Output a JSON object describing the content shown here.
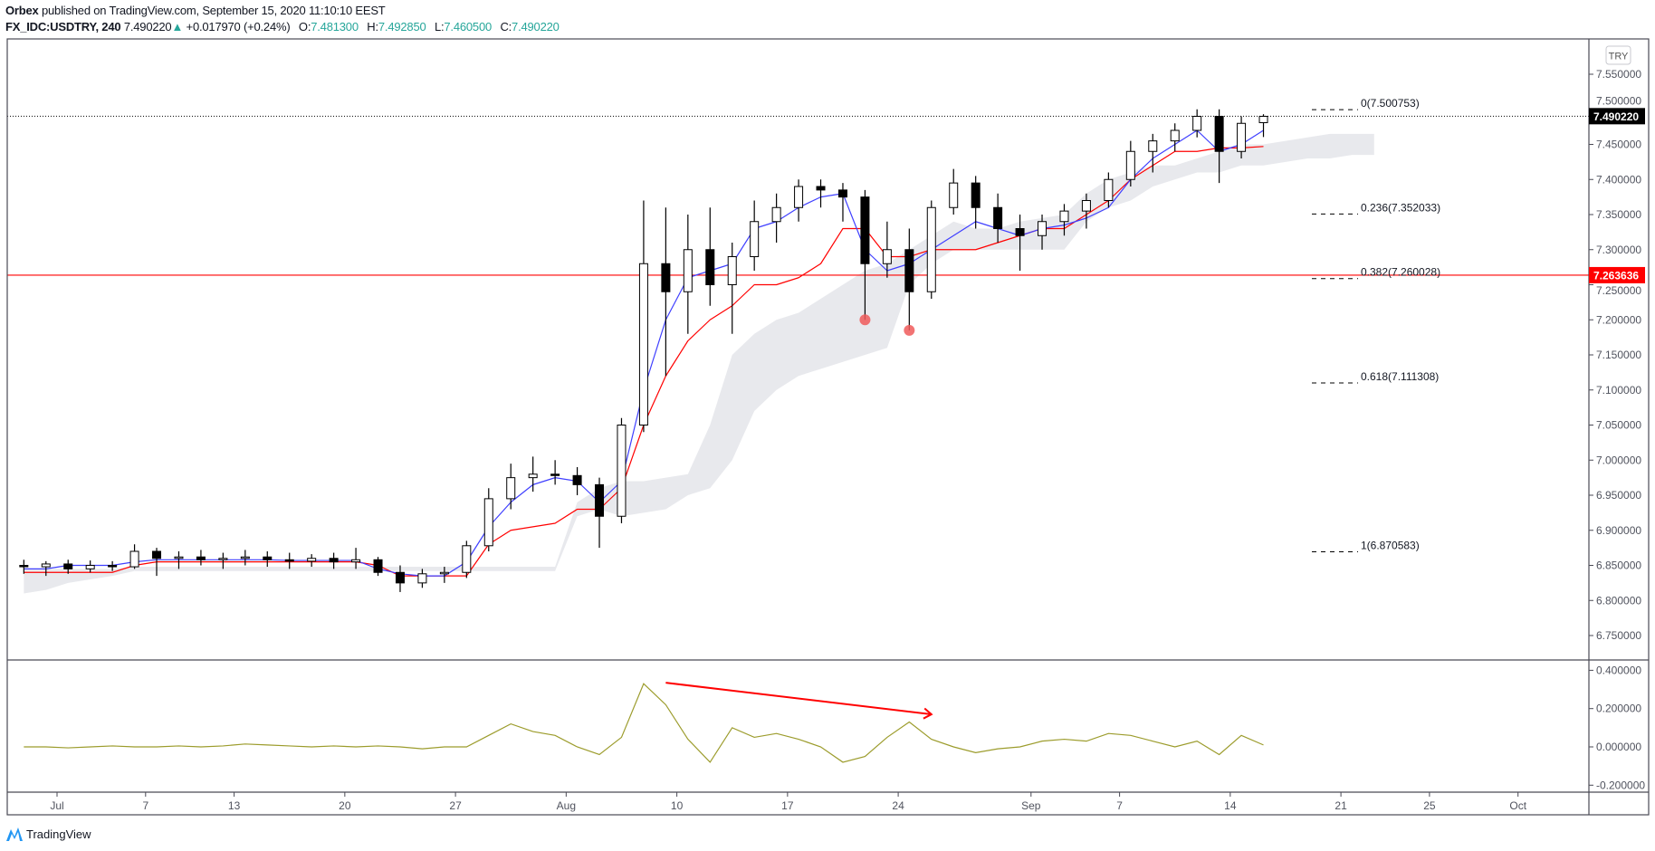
{
  "header": {
    "publisher": "Orbex",
    "published_text": "published on TradingView.com, September 15, 2020 11:10:10 EEST",
    "symbol": "FX_IDC:USDTRY, 240",
    "last": "7.490220",
    "change": "+0.017970 (+0.24%)",
    "o_label": "O:",
    "o": "7.481300",
    "h_label": "H:",
    "h": "7.492850",
    "l_label": "L:",
    "l": "7.460500",
    "c_label": "C:",
    "c": "7.490220"
  },
  "footer": {
    "logo_text": "TradingView"
  },
  "colors": {
    "up_text": "#26a69a",
    "tenkan": "#3f3fff",
    "kijun": "#ff0000",
    "cloud": "#e8e9ed",
    "oscillator": "#9c9c2c",
    "hline": "#ff0000",
    "arrow": "#ff0000",
    "marker": "#f05a5a",
    "last_price_bg": "#000000"
  },
  "chart_data": [
    {
      "type": "candlestick",
      "title": "",
      "currency_button": "TRY",
      "ylim": [
        6.72,
        7.585
      ],
      "y_ticks": [
        "7.550000",
        "7.500000",
        "7.450000",
        "7.400000",
        "7.350000",
        "7.300000",
        "7.250000",
        "7.200000",
        "7.150000",
        "7.100000",
        "7.050000",
        "7.000000",
        "6.950000",
        "6.900000",
        "6.850000",
        "6.800000",
        "6.750000"
      ],
      "x_ticks": [
        {
          "label": "Jul",
          "date": "07-01"
        },
        {
          "label": "7",
          "date": "07-07"
        },
        {
          "label": "13",
          "date": "07-13"
        },
        {
          "label": "20",
          "date": "07-20"
        },
        {
          "label": "27",
          "date": "07-27"
        },
        {
          "label": "Aug",
          "date": "08-03"
        },
        {
          "label": "10",
          "date": "08-10"
        },
        {
          "label": "17",
          "date": "08-17"
        },
        {
          "label": "24",
          "date": "08-24"
        },
        {
          "label": "Sep",
          "date": "09-01"
        },
        {
          "label": "7",
          "date": "09-07"
        },
        {
          "label": "14",
          "date": "09-14"
        },
        {
          "label": "21",
          "date": "09-21"
        },
        {
          "label": "25",
          "date": "09-25"
        },
        {
          "label": "Oct",
          "date": "10-01"
        }
      ],
      "bars_ohlc": [
        [
          "06-29",
          6.85,
          6.858,
          6.838,
          6.848
        ],
        [
          "06-30",
          6.848,
          6.856,
          6.835,
          6.852
        ],
        [
          "07-01",
          6.852,
          6.858,
          6.838,
          6.845
        ],
        [
          "07-02",
          6.845,
          6.857,
          6.84,
          6.85
        ],
        [
          "07-03",
          6.85,
          6.856,
          6.842,
          6.848
        ],
        [
          "07-06",
          6.848,
          6.88,
          6.845,
          6.87
        ],
        [
          "07-07",
          6.87,
          6.875,
          6.835,
          6.86
        ],
        [
          "07-08",
          6.86,
          6.87,
          6.845,
          6.862
        ],
        [
          "07-09",
          6.862,
          6.872,
          6.85,
          6.858
        ],
        [
          "07-10",
          6.858,
          6.868,
          6.845,
          6.86
        ],
        [
          "07-13",
          6.86,
          6.872,
          6.85,
          6.862
        ],
        [
          "07-14",
          6.862,
          6.87,
          6.848,
          6.858
        ],
        [
          "07-15",
          6.858,
          6.868,
          6.845,
          6.856
        ],
        [
          "07-16",
          6.856,
          6.866,
          6.848,
          6.86
        ],
        [
          "07-17",
          6.86,
          6.868,
          6.845,
          6.855
        ],
        [
          "07-20",
          6.855,
          6.875,
          6.845,
          6.858
        ],
        [
          "07-21",
          6.858,
          6.862,
          6.835,
          6.84
        ],
        [
          "07-22",
          6.84,
          6.85,
          6.812,
          6.825
        ],
        [
          "07-23",
          6.825,
          6.845,
          6.818,
          6.838
        ],
        [
          "07-24",
          6.838,
          6.848,
          6.825,
          6.84
        ],
        [
          "07-27",
          6.84,
          6.885,
          6.832,
          6.878
        ],
        [
          "07-28",
          6.878,
          6.96,
          6.87,
          6.945
        ],
        [
          "07-29",
          6.945,
          6.995,
          6.93,
          6.975
        ],
        [
          "07-30",
          6.975,
          7.005,
          6.955,
          6.98
        ],
        [
          "07-31",
          6.98,
          7.0,
          6.965,
          6.978
        ],
        [
          "08-03",
          6.978,
          6.99,
          6.95,
          6.965
        ],
        [
          "08-04",
          6.965,
          6.975,
          6.875,
          6.92
        ],
        [
          "08-05",
          6.92,
          7.06,
          6.91,
          7.05
        ],
        [
          "08-06",
          7.05,
          7.37,
          7.04,
          7.28
        ],
        [
          "08-07",
          7.28,
          7.36,
          7.12,
          7.24
        ],
        [
          "08-10",
          7.24,
          7.35,
          7.18,
          7.3
        ],
        [
          "08-11",
          7.3,
          7.36,
          7.22,
          7.25
        ],
        [
          "08-12",
          7.25,
          7.31,
          7.18,
          7.29
        ],
        [
          "08-13",
          7.29,
          7.37,
          7.27,
          7.34
        ],
        [
          "08-14",
          7.34,
          7.38,
          7.31,
          7.36
        ],
        [
          "08-17",
          7.36,
          7.4,
          7.34,
          7.39
        ],
        [
          "08-18",
          7.39,
          7.4,
          7.36,
          7.385
        ],
        [
          "08-19",
          7.385,
          7.395,
          7.34,
          7.375
        ],
        [
          "08-20",
          7.375,
          7.385,
          7.2,
          7.28
        ],
        [
          "08-21",
          7.28,
          7.34,
          7.26,
          7.3
        ],
        [
          "08-24",
          7.3,
          7.33,
          7.185,
          7.24
        ],
        [
          "08-25",
          7.24,
          7.37,
          7.23,
          7.36
        ],
        [
          "08-26",
          7.36,
          7.415,
          7.35,
          7.395
        ],
        [
          "08-27",
          7.395,
          7.405,
          7.33,
          7.36
        ],
        [
          "08-28",
          7.36,
          7.38,
          7.31,
          7.33
        ],
        [
          "08-31",
          7.33,
          7.35,
          7.27,
          7.32
        ],
        [
          "09-01",
          7.32,
          7.35,
          7.3,
          7.34
        ],
        [
          "09-02",
          7.34,
          7.365,
          7.32,
          7.355
        ],
        [
          "09-03",
          7.355,
          7.38,
          7.33,
          7.37
        ],
        [
          "09-04",
          7.37,
          7.41,
          7.36,
          7.4
        ],
        [
          "09-07",
          7.4,
          7.455,
          7.39,
          7.44
        ],
        [
          "09-08",
          7.44,
          7.465,
          7.41,
          7.455
        ],
        [
          "09-09",
          7.455,
          7.48,
          7.44,
          7.47
        ],
        [
          "09-10",
          7.47,
          7.5,
          7.46,
          7.49
        ],
        [
          "09-11",
          7.49,
          7.5,
          7.395,
          7.44
        ],
        [
          "09-14",
          7.44,
          7.49,
          7.43,
          7.48
        ],
        [
          "09-15",
          7.481,
          7.493,
          7.4605,
          7.49
        ]
      ],
      "tenkan": [
        6.845,
        6.845,
        6.85,
        6.85,
        6.85,
        6.855,
        6.858,
        6.858,
        6.858,
        6.858,
        6.858,
        6.858,
        6.857,
        6.857,
        6.857,
        6.857,
        6.845,
        6.838,
        6.835,
        6.835,
        6.855,
        6.905,
        6.94,
        6.965,
        6.975,
        6.97,
        6.94,
        6.97,
        7.1,
        7.2,
        7.26,
        7.27,
        7.28,
        7.33,
        7.34,
        7.36,
        7.375,
        7.38,
        7.3,
        7.27,
        7.28,
        7.3,
        7.32,
        7.34,
        7.33,
        7.32,
        7.33,
        7.335,
        7.345,
        7.36,
        7.4,
        7.43,
        7.45,
        7.47,
        7.44,
        7.45,
        7.47
      ],
      "kijun": [
        6.84,
        6.84,
        6.84,
        6.84,
        6.84,
        6.85,
        6.855,
        6.855,
        6.855,
        6.855,
        6.855,
        6.855,
        6.855,
        6.855,
        6.855,
        6.855,
        6.85,
        6.835,
        6.835,
        6.835,
        6.835,
        6.88,
        6.9,
        6.905,
        6.91,
        6.93,
        6.93,
        6.96,
        7.05,
        7.12,
        7.17,
        7.2,
        7.22,
        7.25,
        7.25,
        7.26,
        7.28,
        7.33,
        7.33,
        7.29,
        7.29,
        7.3,
        7.3,
        7.3,
        7.31,
        7.32,
        7.33,
        7.33,
        7.35,
        7.37,
        7.4,
        7.42,
        7.44,
        7.44,
        7.445,
        7.445,
        7.447
      ],
      "cloud_top": [
        6.845,
        6.845,
        6.845,
        6.845,
        6.845,
        6.848,
        6.848,
        6.848,
        6.848,
        6.848,
        6.848,
        6.848,
        6.848,
        6.848,
        6.848,
        6.848,
        6.848,
        6.848,
        6.848,
        6.848,
        6.848,
        6.848,
        6.848,
        6.848,
        6.848,
        6.94,
        6.96,
        6.97,
        6.97,
        6.975,
        6.98,
        7.05,
        7.15,
        7.18,
        7.2,
        7.21,
        7.23,
        7.25,
        7.27,
        7.28,
        7.3,
        7.32,
        7.34,
        7.33,
        7.33,
        7.34,
        7.345,
        7.35,
        7.38,
        7.4,
        7.41,
        7.42,
        7.42,
        7.43,
        7.44,
        7.45,
        7.45,
        7.455,
        7.46,
        7.465,
        7.465,
        7.465
      ],
      "cloud_bottom": [
        6.81,
        6.815,
        6.825,
        6.83,
        6.835,
        6.842,
        6.842,
        6.842,
        6.842,
        6.842,
        6.842,
        6.842,
        6.842,
        6.842,
        6.842,
        6.842,
        6.842,
        6.842,
        6.842,
        6.842,
        6.842,
        6.842,
        6.842,
        6.842,
        6.842,
        6.92,
        6.93,
        6.92,
        6.925,
        6.93,
        6.95,
        6.96,
        7.0,
        7.07,
        7.1,
        7.12,
        7.13,
        7.14,
        7.15,
        7.16,
        7.25,
        7.28,
        7.3,
        7.3,
        7.3,
        7.3,
        7.3,
        7.3,
        7.34,
        7.36,
        7.37,
        7.39,
        7.4,
        7.41,
        7.41,
        7.42,
        7.42,
        7.425,
        7.43,
        7.43,
        7.435,
        7.435
      ],
      "horizontal_line": {
        "price": 7.263636,
        "label": "7.263636"
      },
      "last_price": {
        "price": 7.49022,
        "label": "7.490220"
      },
      "markers": [
        {
          "date": "08-20",
          "price": 7.2
        },
        {
          "date": "08-24",
          "price": 7.185
        }
      ],
      "fib_levels": [
        {
          "ratio": 0,
          "price": 7.500753,
          "label": "0(7.500753)"
        },
        {
          "ratio": 0.236,
          "price": 7.352033,
          "label": "0.236(7.352033)"
        },
        {
          "ratio": 0.382,
          "price": 7.260028,
          "label": "0.382(7.260028)"
        },
        {
          "ratio": 0.618,
          "price": 7.111308,
          "label": "0.618(7.111308)"
        },
        {
          "ratio": 1,
          "price": 6.870583,
          "label": "1(6.870583)"
        }
      ]
    },
    {
      "type": "line",
      "title": "",
      "ylim": [
        -0.23,
        0.44
      ],
      "y_ticks": [
        "0.400000",
        "0.200000",
        "0.000000",
        "-0.200000"
      ],
      "values": [
        0.0,
        0.0,
        -0.005,
        0.0,
        0.005,
        0.0,
        0.0,
        0.005,
        0.0,
        0.005,
        0.015,
        0.01,
        0.005,
        0.0,
        0.005,
        0.0,
        0.005,
        0.0,
        -0.01,
        0.0,
        0.0,
        0.06,
        0.12,
        0.08,
        0.06,
        0.0,
        -0.04,
        0.05,
        0.33,
        0.22,
        0.04,
        -0.08,
        0.1,
        0.05,
        0.07,
        0.04,
        0.0,
        -0.08,
        -0.05,
        0.05,
        0.13,
        0.04,
        0.0,
        -0.03,
        -0.01,
        0.0,
        0.03,
        0.04,
        0.03,
        0.07,
        0.06,
        0.03,
        0.0,
        0.03,
        -0.04,
        0.06,
        0.01
      ],
      "trend_arrow": {
        "from": {
          "date": "08-07",
          "value": 0.335
        },
        "to": {
          "date": "08-25",
          "value": 0.17
        }
      }
    }
  ]
}
